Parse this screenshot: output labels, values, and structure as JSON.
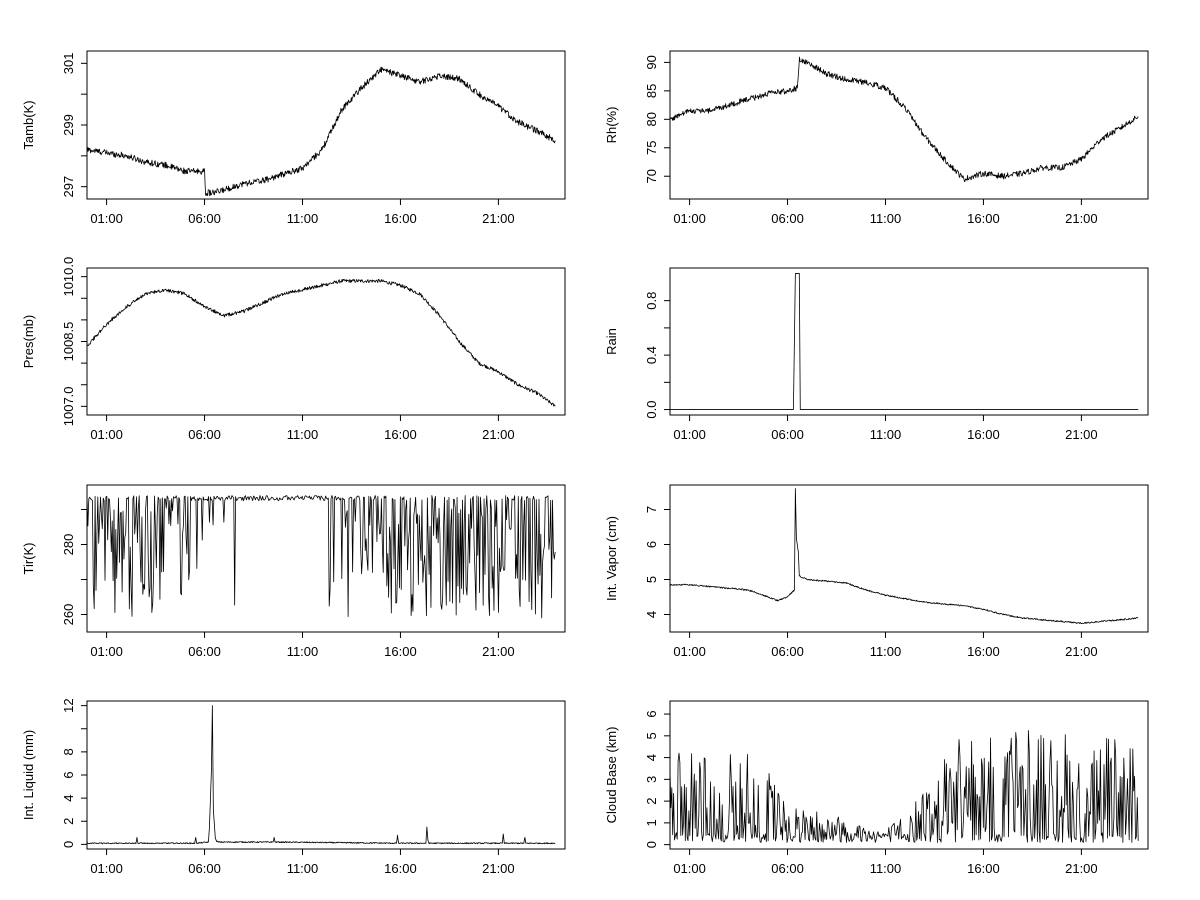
{
  "chart_data": [
    {
      "type": "line",
      "xlabel": "",
      "ylabel": "Tamb(K)",
      "x_tick_labels": [
        "01:00",
        "06:00",
        "11:00",
        "16:00",
        "21:00"
      ],
      "x_ticks_hours": [
        1,
        6,
        11,
        16,
        21
      ],
      "xlim_hours": [
        0,
        24.4
      ],
      "ylim": [
        296.6,
        301.4
      ],
      "y_ticks": [
        297,
        299,
        301
      ],
      "y_minor_ticks": [
        298,
        300
      ],
      "data_hours": [
        0,
        23.9
      ],
      "noise": 0.1,
      "series": [
        {
          "x": [
            0,
            1,
            2,
            3,
            4,
            5,
            6,
            6.05,
            6.5,
            7,
            8,
            9,
            10,
            11,
            12,
            13,
            14,
            15,
            16,
            17,
            18,
            19,
            20,
            21,
            22,
            23,
            23.9
          ],
          "y": [
            298.2,
            298.1,
            298.0,
            297.8,
            297.7,
            297.5,
            297.5,
            296.8,
            296.8,
            296.9,
            297.1,
            297.2,
            297.4,
            297.6,
            298.2,
            299.5,
            300.2,
            300.8,
            300.6,
            300.4,
            300.6,
            300.5,
            300.0,
            299.6,
            299.1,
            298.8,
            298.5
          ]
        }
      ]
    },
    {
      "type": "line",
      "xlabel": "",
      "ylabel": "Rh(%)",
      "x_tick_labels": [
        "01:00",
        "06:00",
        "11:00",
        "16:00",
        "21:00"
      ],
      "x_ticks_hours": [
        1,
        6,
        11,
        16,
        21
      ],
      "xlim_hours": [
        0,
        24.4
      ],
      "ylim": [
        66,
        92
      ],
      "y_ticks": [
        70,
        75,
        80,
        85,
        90
      ],
      "y_minor_ticks": [],
      "data_hours": [
        0,
        23.9
      ],
      "noise": 0.5,
      "series": [
        {
          "x": [
            0,
            1,
            2,
            3,
            4,
            5,
            6,
            6.5,
            6.6,
            7,
            8,
            9,
            10,
            11,
            12,
            13,
            14,
            15,
            16,
            17,
            18,
            19,
            20,
            21,
            22,
            23,
            23.9
          ],
          "y": [
            80,
            81.5,
            81.5,
            82.5,
            83.5,
            84.5,
            85,
            85.5,
            90.5,
            90,
            88,
            87,
            86.5,
            85.5,
            82,
            77,
            73,
            69.5,
            70.5,
            70,
            70.5,
            71.5,
            71.5,
            73,
            76.5,
            78.5,
            80.5
          ]
        }
      ]
    },
    {
      "type": "line",
      "xlabel": "",
      "ylabel": "Pres(mb)",
      "x_tick_labels": [
        "01:00",
        "06:00",
        "11:00",
        "16:00",
        "21:00"
      ],
      "x_ticks_hours": [
        1,
        6,
        11,
        16,
        21
      ],
      "xlim_hours": [
        0,
        24.4
      ],
      "ylim": [
        1006.8,
        1010.2
      ],
      "y_ticks": [
        1007.0,
        1008.5,
        1010.0
      ],
      "y_tick_labels": [
        "1007.0",
        "1008.5",
        "1010.0"
      ],
      "y_minor_ticks": [
        1007.5,
        1008.0,
        1009.0,
        1009.5
      ],
      "data_hours": [
        0,
        23.9
      ],
      "noise": 0.04,
      "series": [
        {
          "x": [
            0,
            1,
            2,
            3,
            4,
            5,
            6,
            7,
            8,
            9,
            10,
            11,
            12,
            13,
            14,
            15,
            16,
            17,
            18,
            19,
            20,
            21,
            22,
            23,
            23.9
          ],
          "y": [
            1008.4,
            1008.9,
            1009.3,
            1009.6,
            1009.7,
            1009.6,
            1009.3,
            1009.1,
            1009.2,
            1009.4,
            1009.6,
            1009.7,
            1009.8,
            1009.9,
            1009.9,
            1009.9,
            1009.8,
            1009.6,
            1009.1,
            1008.5,
            1008.0,
            1007.8,
            1007.5,
            1007.3,
            1007.0
          ]
        }
      ]
    },
    {
      "type": "line",
      "xlabel": "",
      "ylabel": "Rain",
      "x_tick_labels": [
        "01:00",
        "06:00",
        "11:00",
        "16:00",
        "21:00"
      ],
      "x_ticks_hours": [
        1,
        6,
        11,
        16,
        21
      ],
      "xlim_hours": [
        0,
        24.4
      ],
      "ylim": [
        -0.04,
        1.04
      ],
      "y_ticks": [
        0.0,
        0.4,
        0.8
      ],
      "y_tick_labels": [
        "0.0",
        "0.4",
        "0.8"
      ],
      "y_minor_ticks": [
        0.2,
        0.6
      ],
      "data_hours": [
        0,
        23.9
      ],
      "noise": 0,
      "series": [
        {
          "x": [
            0,
            6.3,
            6.35,
            6.4,
            6.45,
            6.6,
            6.65,
            6.7,
            23.9
          ],
          "y": [
            0,
            0,
            0.5,
            1,
            1,
            1,
            0,
            0,
            0
          ]
        }
      ]
    },
    {
      "type": "line",
      "xlabel": "",
      "ylabel": "Tir(K)",
      "x_tick_labels": [
        "01:00",
        "06:00",
        "11:00",
        "16:00",
        "21:00"
      ],
      "x_ticks_hours": [
        1,
        6,
        11,
        16,
        21
      ],
      "xlim_hours": [
        0,
        24.4
      ],
      "ylim": [
        255,
        297
      ],
      "y_ticks": [
        260,
        280
      ],
      "y_minor_ticks": [
        270,
        290
      ],
      "data_hours": [
        0,
        23.9
      ],
      "noise": 0,
      "spiky": {
        "top": 294,
        "min": 259
      },
      "series": [
        {
          "x": [
            0,
            3,
            5,
            6,
            7,
            10,
            12,
            13,
            14,
            16,
            18,
            20,
            21,
            22,
            23.9
          ],
          "y": [
            270,
            272,
            278,
            286,
            292,
            293,
            293,
            285,
            272,
            270,
            272,
            268,
            270,
            272,
            275
          ]
        }
      ]
    },
    {
      "type": "line",
      "xlabel": "",
      "ylabel": "Int. Vapor (cm)",
      "x_tick_labels": [
        "01:00",
        "06:00",
        "11:00",
        "16:00",
        "21:00"
      ],
      "x_ticks_hours": [
        1,
        6,
        11,
        16,
        21
      ],
      "xlim_hours": [
        0,
        24.4
      ],
      "ylim": [
        3.5,
        7.7
      ],
      "y_ticks": [
        4,
        5,
        6,
        7
      ],
      "y_minor_ticks": [],
      "data_hours": [
        0,
        23.9
      ],
      "noise": 0.02,
      "series": [
        {
          "x": [
            0,
            1,
            2,
            3,
            4,
            5,
            5.5,
            6,
            6.35,
            6.4,
            6.45,
            6.55,
            6.6,
            7,
            8,
            9,
            10,
            11,
            12,
            13,
            14,
            15,
            16,
            17,
            18,
            19,
            20,
            21,
            22,
            23,
            23.9
          ],
          "y": [
            4.85,
            4.85,
            4.8,
            4.75,
            4.7,
            4.5,
            4.4,
            4.5,
            4.7,
            7.6,
            6.2,
            5.8,
            5.1,
            5.0,
            4.95,
            4.9,
            4.7,
            4.55,
            4.45,
            4.35,
            4.3,
            4.25,
            4.15,
            4.0,
            3.9,
            3.85,
            3.8,
            3.75,
            3.8,
            3.85,
            3.9
          ]
        }
      ]
    },
    {
      "type": "line",
      "xlabel": "",
      "ylabel": "Int. Liquid (mm)",
      "x_tick_labels": [
        "01:00",
        "06:00",
        "11:00",
        "16:00",
        "21:00"
      ],
      "x_ticks_hours": [
        1,
        6,
        11,
        16,
        21
      ],
      "xlim_hours": [
        0,
        24.4
      ],
      "ylim": [
        -0.4,
        12.4
      ],
      "y_ticks": [
        0,
        2,
        4,
        6,
        8,
        12
      ],
      "y_minor_ticks": [
        10
      ],
      "data_hours": [
        0,
        23.9
      ],
      "noise": 0.05,
      "series": [
        {
          "x": [
            0,
            2,
            2.5,
            2.55,
            2.6,
            5.5,
            5.55,
            5.6,
            6.2,
            6.25,
            6.35,
            6.4,
            6.45,
            6.5,
            6.55,
            6.6,
            6.7,
            9.5,
            9.55,
            9.6,
            15.8,
            15.85,
            15.9,
            17.3,
            17.35,
            17.4,
            17.45,
            21.2,
            21.25,
            21.3,
            22.3,
            22.35,
            22.4,
            23.9
          ],
          "y": [
            0.1,
            0.1,
            0.1,
            0.6,
            0.1,
            0.1,
            0.6,
            0.1,
            0.2,
            1.5,
            6.3,
            12.0,
            3.0,
            1.8,
            0.5,
            0.3,
            0.2,
            0.2,
            0.6,
            0.2,
            0.1,
            0.8,
            0.1,
            0.1,
            1.5,
            0.4,
            0.1,
            0.1,
            0.9,
            0.1,
            0.1,
            0.6,
            0.1,
            0.1
          ]
        }
      ]
    },
    {
      "type": "line",
      "xlabel": "",
      "ylabel": "Cloud Base (km)",
      "x_tick_labels": [
        "01:00",
        "06:00",
        "11:00",
        "16:00",
        "21:00"
      ],
      "x_ticks_hours": [
        1,
        6,
        11,
        16,
        21
      ],
      "xlim_hours": [
        0,
        24.4
      ],
      "ylim": [
        -0.2,
        6.6
      ],
      "y_ticks": [
        0,
        1,
        2,
        3,
        4,
        5,
        6
      ],
      "y_minor_ticks": [],
      "data_hours": [
        0,
        23.9
      ],
      "noise": 0,
      "spiky": {
        "bottom": 0.1,
        "max": 6.3
      },
      "series": [
        {
          "x": [
            0,
            2,
            4,
            5,
            6,
            8,
            10,
            11,
            12,
            13,
            14,
            16,
            18,
            20,
            22,
            23.9
          ],
          "y": [
            3.0,
            2.5,
            3.0,
            2.2,
            1.2,
            1.0,
            0.6,
            0.5,
            0.9,
            1.8,
            3.0,
            3.2,
            3.4,
            3.2,
            3.2,
            3.0
          ]
        }
      ]
    }
  ]
}
